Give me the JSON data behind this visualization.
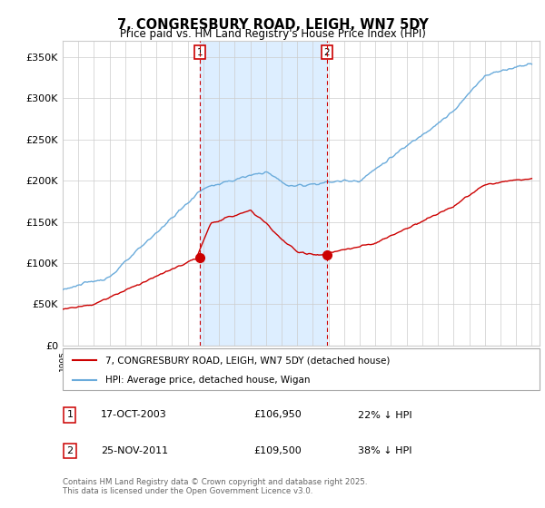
{
  "title": "7, CONGRESBURY ROAD, LEIGH, WN7 5DY",
  "subtitle": "Price paid vs. HM Land Registry's House Price Index (HPI)",
  "ylabel_ticks": [
    "£0",
    "£50K",
    "£100K",
    "£150K",
    "£200K",
    "£250K",
    "£300K",
    "£350K"
  ],
  "ytick_values": [
    0,
    50000,
    100000,
    150000,
    200000,
    250000,
    300000,
    350000
  ],
  "ylim": [
    0,
    370000
  ],
  "xlim_start": 1995.0,
  "xlim_end": 2025.5,
  "hpi_color": "#6aabdb",
  "price_color": "#cc0000",
  "shade_color": "#ddeeff",
  "marker1_date": 2003.79,
  "marker1_price": 106950,
  "marker2_date": 2011.9,
  "marker2_price": 109500,
  "legend_label_price": "7, CONGRESBURY ROAD, LEIGH, WN7 5DY (detached house)",
  "legend_label_hpi": "HPI: Average price, detached house, Wigan",
  "footer": "Contains HM Land Registry data © Crown copyright and database right 2025.\nThis data is licensed under the Open Government Licence v3.0.",
  "background_color": "#ffffff",
  "plot_bg_color": "#ffffff",
  "grid_color": "#cccccc"
}
